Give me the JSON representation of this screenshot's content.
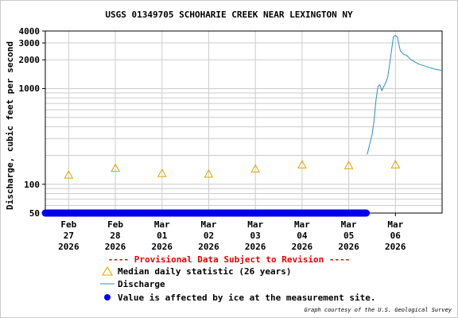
{
  "chart_data": {
    "type": "line",
    "title": "USGS 01349705 SCHOHARIE CREEK NEAR LEXINGTON NY",
    "ylabel": "Discharge, cubic feet per second",
    "xlabel": "",
    "yscale": "log",
    "ylim": [
      50,
      4000
    ],
    "yticks": [
      "4000",
      "3000",
      "2000",
      "1000",
      "100",
      "50"
    ],
    "yticks_values": [
      4000,
      3000,
      2000,
      1000,
      100,
      50
    ],
    "xticks": [
      {
        "month": "Feb",
        "day": "27",
        "year": "2026"
      },
      {
        "month": "Feb",
        "day": "28",
        "year": "2026"
      },
      {
        "month": "Mar",
        "day": "01",
        "year": "2026"
      },
      {
        "month": "Mar",
        "day": "02",
        "year": "2026"
      },
      {
        "month": "Mar",
        "day": "03",
        "year": "2026"
      },
      {
        "month": "Mar",
        "day": "04",
        "year": "2026"
      },
      {
        "month": "Mar",
        "day": "05",
        "year": "2026"
      },
      {
        "month": "Mar",
        "day": "06",
        "year": "2026"
      }
    ],
    "xlim": [
      "2026-02-26T12:00",
      "2026-03-07T00:00"
    ],
    "grid": true,
    "series": [
      {
        "name": "Median daily statistic (26 years)",
        "kind": "marker",
        "marker": "triangle",
        "color": "#e0a000",
        "x": [
          "2026-02-27T00:00",
          "2026-02-28T00:00",
          "2026-03-01T00:00",
          "2026-03-02T00:00",
          "2026-03-03T00:00",
          "2026-03-04T00:00",
          "2026-03-05T00:00",
          "2026-03-06T00:00"
        ],
        "y": [
          125,
          147,
          130,
          128,
          145,
          160,
          157,
          160
        ]
      },
      {
        "name": "Discharge",
        "kind": "line",
        "color": "#2f8fbf",
        "x": [
          "2026-03-05T09:30",
          "2026-03-05T10:30",
          "2026-03-05T12:00",
          "2026-03-05T13:00",
          "2026-03-05T14:00",
          "2026-03-05T15:00",
          "2026-03-05T16:00",
          "2026-03-05T17:00",
          "2026-03-05T18:00",
          "2026-03-05T19:00",
          "2026-03-05T20:00",
          "2026-03-05T21:00",
          "2026-03-05T22:00",
          "2026-03-05T23:00",
          "2026-03-06T00:00",
          "2026-03-06T01:00",
          "2026-03-06T02:30",
          "2026-03-06T04:00",
          "2026-03-06T06:00",
          "2026-03-06T08:00",
          "2026-03-06T10:00",
          "2026-03-06T12:00",
          "2026-03-06T16:00",
          "2026-03-06T20:00",
          "2026-03-06T23:30"
        ],
        "y": [
          205,
          250,
          330,
          460,
          750,
          1050,
          1100,
          950,
          1050,
          1150,
          1300,
          1800,
          2500,
          3500,
          3600,
          3450,
          2500,
          2300,
          2200,
          2000,
          1900,
          1800,
          1700,
          1600,
          1550
        ]
      },
      {
        "name": "Value is affected by ice at the measurement site.",
        "kind": "points",
        "color": "#0000ee",
        "x": [
          "2026-02-26T12:00",
          "2026-03-05T09:00"
        ],
        "y": [
          50,
          50
        ]
      }
    ],
    "note": "---- Provisional Data Subject to Revision ----",
    "legend_placement": "bottom"
  },
  "credit": "Graph courtesy of the U.S. Geological Survey"
}
